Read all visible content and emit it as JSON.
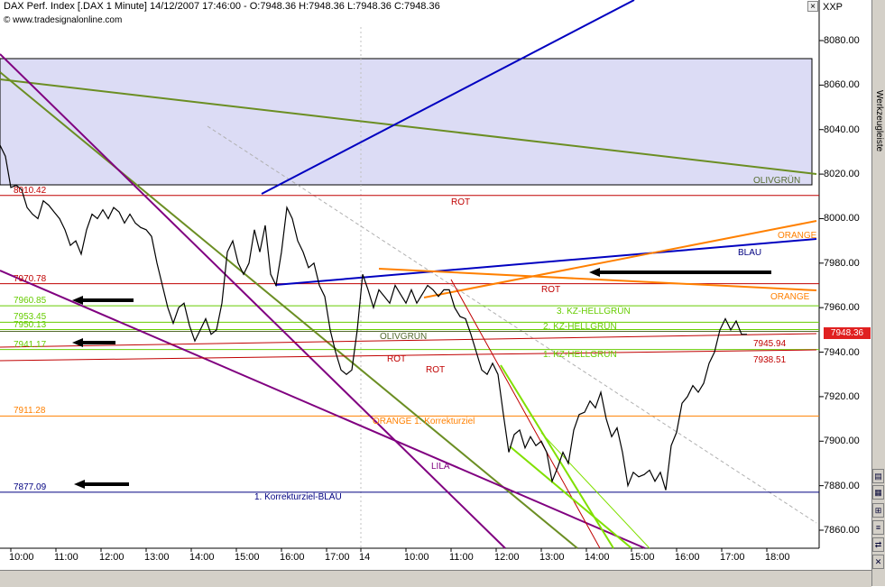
{
  "header": {
    "title": "DAX Perf. Index [.DAX  1 Minute] 14/12/2007 17:46:00 - O:7948.36 H:7948.36 L:7948.36 C:7948.36",
    "copyright": "© www.tradesignalonline.com"
  },
  "toolbar": {
    "corner_label": "XXP",
    "close_symbol": "×"
  },
  "side_panel": {
    "label": "Werkzeugleiste"
  },
  "last_price": "7948.36",
  "levels": [
    {
      "value": 8010.42,
      "label": "8010.42",
      "color": "#c00000"
    },
    {
      "value": 7970.78,
      "label": "7970.78",
      "color": "#c00000"
    },
    {
      "value": 7960.85,
      "label": "7960.85",
      "color": "#66cc00"
    },
    {
      "value": 7953.45,
      "label": "7953.45",
      "color": "#66cc00"
    },
    {
      "value": 7950.13,
      "label": "7950.13",
      "color": "#66cc00"
    },
    {
      "value": 7941.17,
      "label": "7941.17",
      "color": "#66cc00"
    },
    {
      "value": 7911.28,
      "label": "7911.28",
      "color": "#ff8000"
    },
    {
      "value": 7877.09,
      "label": "7877.09",
      "color": "#000080"
    }
  ],
  "right_levels": [
    {
      "value": 7945.94,
      "label": "7945.94",
      "color": "#c00000"
    },
    {
      "value": 7938.51,
      "label": "7938.51",
      "color": "#c00000"
    }
  ],
  "annotations": {
    "rot_top": "ROT",
    "olivgruen_top": "OLIVGRÜN",
    "orange_upper": "ORANGE",
    "blau": "BLAU",
    "rot_mid": "ROT",
    "orange_mid": "ORANGE",
    "kz3": "3. KZ-HELLGRÜN",
    "kz2": "2. KZ-HELLGRÜN",
    "kz1": "1. KZ-HELLGRÜN",
    "olivgruen_mid": "OLIVGRÜN",
    "rot_low1": "ROT",
    "rot_low2": "ROT",
    "orange_korrektur": "ORANGE 1. Korrekturziel",
    "lila": "LILA",
    "blau_korrektur": "1. Korrekturziel-BLAU"
  },
  "chart_data": {
    "type": "line",
    "title": "DAX Perf. Index [.DAX  1 Minute] 14/12/2007 17:46:00 - O:7948.36 H:7948.36 L:7948.36 C:7948.36",
    "xlabel": "",
    "ylabel": "",
    "ylim": [
      7850,
      8090
    ],
    "yticks": [
      "8080.00",
      "8060.00",
      "8040.00",
      "8020.00",
      "8000.00",
      "7980.00",
      "7960.00",
      "7940.00",
      "7920.00",
      "7900.00",
      "7880.00",
      "7860.00"
    ],
    "xticks": [
      "10:00",
      "11:00",
      "12:00",
      "13:00",
      "14:00",
      "15:00",
      "16:00",
      "17:00",
      "14",
      "10:00",
      "11:00",
      "12:00",
      "13:00",
      "14:00",
      "15:00",
      "16:00",
      "17:00",
      "18:00"
    ],
    "grid": true,
    "series": [
      {
        "values": [
          [
            0,
            8033
          ],
          [
            6,
            8028
          ],
          [
            12,
            8014
          ],
          [
            18,
            8015
          ],
          [
            24,
            8013
          ],
          [
            30,
            8005
          ],
          [
            36,
            8002
          ],
          [
            42,
            8000
          ],
          [
            48,
            8008
          ],
          [
            54,
            8006
          ],
          [
            60,
            8003
          ],
          [
            66,
            8000
          ],
          [
            72,
            7995
          ],
          [
            78,
            7988
          ],
          [
            84,
            7990
          ],
          [
            90,
            7984
          ],
          [
            96,
            7995
          ],
          [
            102,
            8002
          ],
          [
            108,
            8000
          ],
          [
            114,
            8004
          ],
          [
            120,
            8000
          ],
          [
            126,
            8005
          ],
          [
            132,
            8003
          ],
          [
            138,
            7998
          ],
          [
            144,
            8002
          ],
          [
            150,
            7998
          ],
          [
            156,
            7996
          ],
          [
            162,
            7995
          ],
          [
            168,
            7992
          ],
          [
            174,
            7980
          ],
          [
            180,
            7970
          ],
          [
            186,
            7960
          ],
          [
            192,
            7953
          ],
          [
            198,
            7960
          ],
          [
            204,
            7962
          ],
          [
            210,
            7952
          ],
          [
            216,
            7945
          ],
          [
            222,
            7950
          ],
          [
            228,
            7955
          ],
          [
            234,
            7948
          ],
          [
            240,
            7950
          ],
          [
            246,
            7962
          ],
          [
            252,
            7985
          ],
          [
            258,
            7990
          ],
          [
            264,
            7980
          ],
          [
            270,
            7975
          ],
          [
            276,
            7980
          ],
          [
            282,
            7995
          ],
          [
            288,
            7985
          ],
          [
            294,
            7997
          ],
          [
            300,
            7975
          ],
          [
            306,
            7970
          ],
          [
            312,
            7985
          ],
          [
            318,
            8005
          ],
          [
            324,
            8000
          ],
          [
            330,
            7990
          ],
          [
            336,
            7985
          ],
          [
            342,
            7978
          ],
          [
            348,
            7980
          ],
          [
            354,
            7970
          ],
          [
            360,
            7965
          ],
          [
            366,
            7950
          ],
          [
            372,
            7940
          ],
          [
            378,
            7932
          ],
          [
            384,
            7930
          ],
          [
            390,
            7932
          ],
          [
            396,
            7950
          ],
          [
            402,
            7975
          ],
          [
            408,
            7968
          ],
          [
            414,
            7960
          ],
          [
            420,
            7968
          ],
          [
            426,
            7965
          ],
          [
            432,
            7962
          ],
          [
            438,
            7970
          ],
          [
            444,
            7966
          ],
          [
            450,
            7962
          ],
          [
            456,
            7968
          ],
          [
            462,
            7962
          ],
          [
            468,
            7966
          ],
          [
            474,
            7970
          ],
          [
            480,
            7968
          ],
          [
            486,
            7965
          ],
          [
            492,
            7968
          ],
          [
            498,
            7968
          ],
          [
            504,
            7960
          ],
          [
            510,
            7956
          ],
          [
            516,
            7955
          ],
          [
            522,
            7948
          ],
          [
            528,
            7940
          ],
          [
            534,
            7932
          ],
          [
            540,
            7930
          ],
          [
            546,
            7935
          ],
          [
            552,
            7930
          ],
          [
            558,
            7912
          ],
          [
            564,
            7895
          ],
          [
            570,
            7903
          ],
          [
            576,
            7905
          ],
          [
            582,
            7897
          ],
          [
            588,
            7902
          ],
          [
            594,
            7898
          ],
          [
            600,
            7900
          ],
          [
            606,
            7895
          ],
          [
            612,
            7882
          ],
          [
            618,
            7888
          ],
          [
            624,
            7895
          ],
          [
            630,
            7890
          ],
          [
            636,
            7905
          ],
          [
            642,
            7912
          ],
          [
            648,
            7913
          ],
          [
            654,
            7918
          ],
          [
            660,
            7915
          ],
          [
            666,
            7922
          ],
          [
            672,
            7910
          ],
          [
            678,
            7902
          ],
          [
            684,
            7906
          ],
          [
            690,
            7895
          ],
          [
            696,
            7880
          ],
          [
            702,
            7886
          ],
          [
            708,
            7884
          ],
          [
            714,
            7885
          ],
          [
            720,
            7887
          ],
          [
            726,
            7882
          ],
          [
            732,
            7886
          ],
          [
            738,
            7878
          ],
          [
            744,
            7898
          ],
          [
            750,
            7904
          ],
          [
            756,
            7917
          ],
          [
            762,
            7920
          ],
          [
            768,
            7925
          ],
          [
            774,
            7922
          ],
          [
            780,
            7926
          ],
          [
            786,
            7935
          ],
          [
            792,
            7940
          ],
          [
            798,
            7950
          ],
          [
            804,
            7955
          ],
          [
            810,
            7950
          ],
          [
            816,
            7954
          ],
          [
            822,
            7948
          ],
          [
            828,
            7948
          ]
        ]
      }
    ]
  }
}
